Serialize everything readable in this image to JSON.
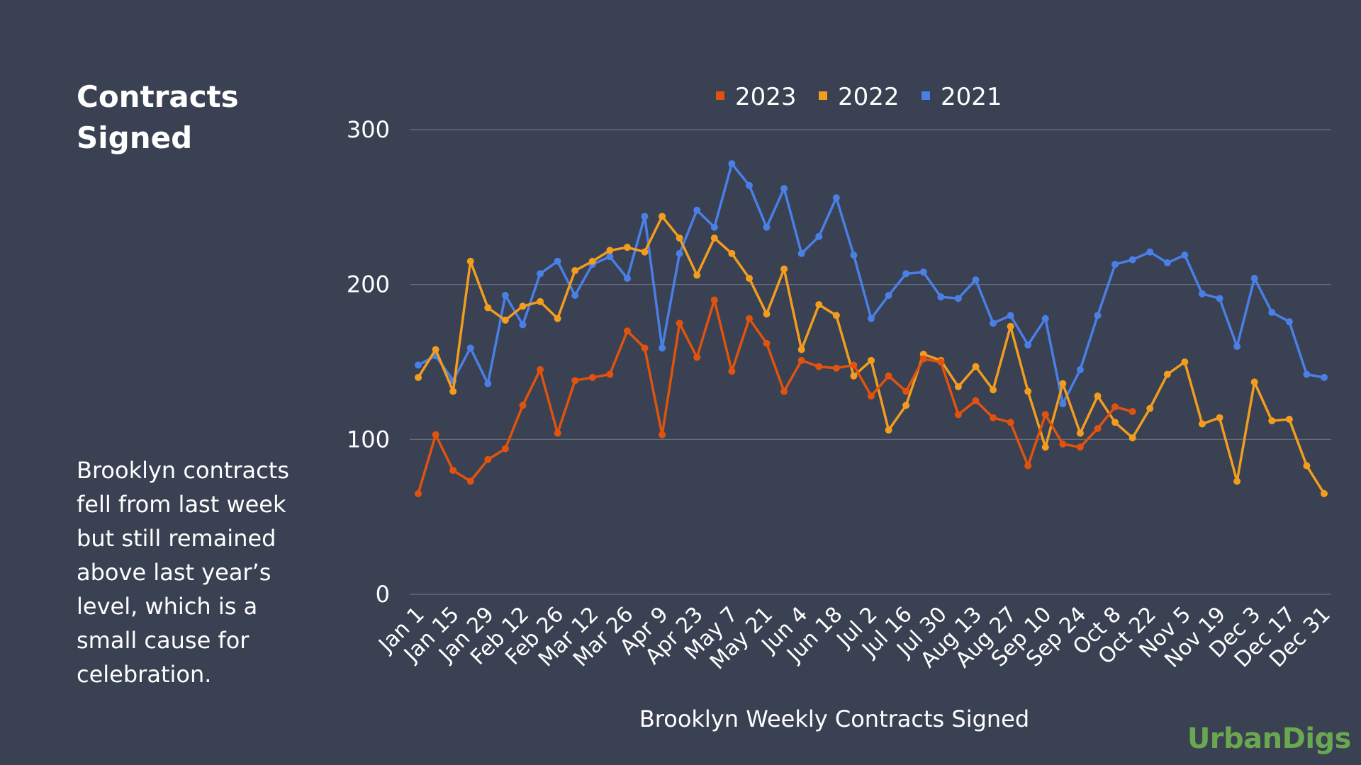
{
  "sidebar": {
    "title": "Contracts Signed",
    "description": "Brooklyn contracts fell from last week but still remained above last year’s level, which is a small cause for celebration."
  },
  "brand": "UrbanDigs",
  "colors": {
    "background": "#394152",
    "grid": "#6b7282",
    "brand": "#6aa84f"
  },
  "chart_data": {
    "type": "line",
    "title": "",
    "xlabel": "Brooklyn Weekly Contracts Signed",
    "ylabel": "",
    "ylim": [
      0,
      300
    ],
    "yticks": [
      0,
      100,
      200,
      300
    ],
    "grid": true,
    "legend_position": "top",
    "tick_labels": [
      "Jan 1",
      "Jan 15",
      "Jan 29",
      "Feb 12",
      "Feb 26",
      "Mar 12",
      "Mar 26",
      "Apr 9",
      "Apr 23",
      "May 7",
      "May 21",
      "Jun 4",
      "Jun 18",
      "Jul 2",
      "Jul 16",
      "Jul 30",
      "Aug 13",
      "Aug 27",
      "Sep 10",
      "Sep 24",
      "Oct 8",
      "Oct 22",
      "Nov 5",
      "Nov 19",
      "Dec 3",
      "Dec 17",
      "Dec 31"
    ],
    "week_count": 53,
    "series": [
      {
        "name": "2023",
        "color": "#e0530f",
        "values": [
          65,
          103,
          80,
          73,
          87,
          94,
          122,
          145,
          104,
          138,
          140,
          142,
          170,
          159,
          103,
          175,
          153,
          190,
          144,
          178,
          162,
          131,
          151,
          147,
          146,
          148,
          128,
          141,
          131,
          152,
          150,
          116,
          125,
          114,
          111,
          83,
          116,
          97,
          95,
          107,
          121,
          118
        ]
      },
      {
        "name": "2022",
        "color": "#f29d1e",
        "values": [
          140,
          158,
          131,
          215,
          185,
          177,
          186,
          189,
          178,
          209,
          215,
          222,
          224,
          221,
          244,
          230,
          206,
          230,
          220,
          204,
          181,
          210,
          158,
          187,
          180,
          141,
          151,
          106,
          122,
          155,
          151,
          134,
          147,
          132,
          173,
          131,
          95,
          136,
          104,
          128,
          111,
          101,
          120,
          142,
          150,
          110,
          114,
          73,
          137,
          112,
          113,
          83,
          65
        ]
      },
      {
        "name": "2021",
        "color": "#4a7fe6",
        "values": [
          148,
          154,
          138,
          159,
          136,
          193,
          174,
          207,
          215,
          193,
          213,
          218,
          204,
          244,
          159,
          220,
          248,
          237,
          278,
          264,
          237,
          262,
          220,
          231,
          256,
          219,
          178,
          193,
          207,
          208,
          192,
          191,
          203,
          175,
          180,
          161,
          178,
          123,
          145,
          180,
          213,
          216,
          221,
          214,
          219,
          194,
          191,
          160,
          204,
          182,
          176,
          142,
          140
        ]
      }
    ]
  }
}
